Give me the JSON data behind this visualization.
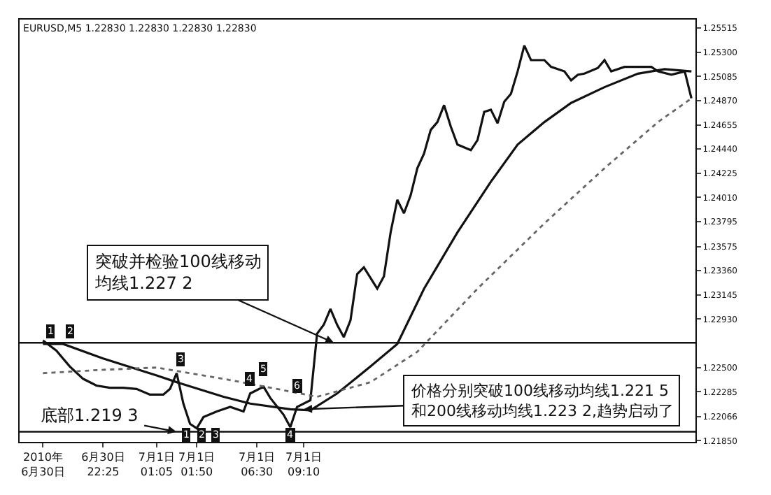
{
  "chart_data": {
    "type": "line",
    "title": "EURUSD,M5 1.22830 1.22830 1.22830 1.22830",
    "ylim": [
      1.2184,
      1.2559
    ],
    "categories": [
      null,
      "2010年\n6月30日",
      null,
      null,
      null,
      null,
      null,
      null,
      null,
      null,
      "6月30日\n22:25",
      null,
      null,
      null,
      null,
      null,
      null,
      null,
      "7月1日\n01:05",
      null,
      null,
      null,
      null,
      null,
      "7月1日\n01:50",
      null,
      null,
      null,
      null,
      null,
      null,
      null,
      null,
      "7月1日\n06:30",
      null,
      null,
      null,
      null,
      null,
      null,
      "7月1日\n09:10",
      null,
      null,
      null,
      null,
      null,
      null,
      null,
      null,
      null,
      null,
      null,
      null,
      null,
      null,
      null,
      null,
      null,
      null,
      null,
      null,
      null,
      null,
      null,
      null,
      null,
      null,
      null,
      null,
      null,
      null,
      null,
      null,
      null,
      null,
      null,
      null,
      null,
      null,
      null,
      null,
      null,
      null,
      null,
      null,
      null,
      null,
      null,
      null,
      null,
      null,
      null,
      null,
      null,
      null,
      null,
      null,
      null,
      null
    ],
    "yticks": [
      {
        "value": 1.2185,
        "label": "1.21850"
      },
      {
        "value": 1.22066,
        "label": "1.22066"
      },
      {
        "value": 1.22285,
        "label": "1.22285"
      },
      {
        "value": 1.225,
        "label": "1.22500"
      },
      {
        "value": 1.2293,
        "label": "1.22930"
      },
      {
        "value": 1.23145,
        "label": "1.23145"
      },
      {
        "value": 1.2336,
        "label": "1.23360"
      },
      {
        "value": 1.23575,
        "label": "1.23575"
      },
      {
        "value": 1.23795,
        "label": "1.23795"
      },
      {
        "value": 1.2401,
        "label": "1.24010"
      },
      {
        "value": 1.24225,
        "label": "1.24225"
      },
      {
        "value": 1.2444,
        "label": "1.24440"
      },
      {
        "value": 1.24655,
        "label": "1.24655"
      },
      {
        "value": 1.2487,
        "label": "1.24870"
      },
      {
        "value": 1.25085,
        "label": "1.25085"
      },
      {
        "value": 1.253,
        "label": "1.25300"
      },
      {
        "value": 1.25515,
        "label": "1.25515"
      }
    ],
    "marker": "none",
    "series": [
      {
        "color": "#111111",
        "line_style": "solid",
        "values": [
          null,
          1.2274,
          null,
          1.2265,
          null,
          1.2251,
          null,
          1.224,
          null,
          1.2234,
          null,
          1.2232,
          null,
          1.2232,
          null,
          1.2231,
          null,
          1.2226,
          null,
          1.2226,
          1.2231,
          1.2245,
          1.2218,
          1.22,
          1.2196,
          1.2206,
          null,
          1.2211,
          null,
          1.2215,
          null,
          1.2211,
          1.2227,
          null,
          1.2233,
          1.2223,
          null,
          1.2208,
          1.2197,
          1.2215,
          null,
          1.2221,
          1.228,
          1.2288,
          1.2302,
          1.2288,
          1.2277,
          1.2292,
          1.2333,
          1.2339,
          null,
          1.232,
          1.2331,
          1.237,
          1.2399,
          1.2387,
          1.2403,
          1.2427,
          1.244,
          1.2461,
          1.2468,
          1.2483,
          1.2464,
          1.2448,
          null,
          1.2443,
          1.2452,
          1.2477,
          1.2479,
          1.2467,
          1.2486,
          1.2493,
          1.2513,
          1.2536,
          1.2523,
          null,
          1.2523,
          1.2517,
          null,
          1.2513,
          1.2505,
          1.251,
          1.2511,
          null,
          1.2516,
          1.2523,
          1.2513,
          null,
          1.2517,
          null,
          1.2517,
          null,
          1.2517,
          1.2513,
          null,
          1.251,
          null,
          1.2513,
          1.2489
        ]
      },
      {
        "color": "#111111",
        "line_style": "solid",
        "values": [
          null,
          1.2271,
          null,
          null,
          1.2271,
          null,
          null,
          null,
          null,
          null,
          1.2258,
          null,
          null,
          null,
          null,
          null,
          null,
          null,
          1.2243,
          null,
          null,
          1.2237,
          null,
          null,
          null,
          null,
          null,
          null,
          1.2224,
          null,
          null,
          null,
          1.2218,
          null,
          null,
          null,
          null,
          null,
          1.2213,
          null,
          null,
          1.2212,
          null,
          null,
          null,
          1.2227,
          null,
          null,
          null,
          null,
          1.2251,
          null,
          null,
          null,
          1.2271,
          null,
          null,
          null,
          1.232,
          null,
          null,
          null,
          null,
          1.237,
          null,
          null,
          null,
          null,
          1.2415,
          null,
          null,
          null,
          1.2448,
          null,
          null,
          null,
          1.2468,
          null,
          null,
          null,
          1.2485,
          null,
          null,
          null,
          null,
          1.2499,
          null,
          null,
          null,
          null,
          1.2511,
          null,
          null,
          null,
          1.2515,
          null,
          null,
          null,
          1.2513
        ]
      },
      {
        "color": "#666666",
        "line_style": "dotted",
        "values": [
          null,
          1.2245,
          null,
          null,
          null,
          null,
          null,
          null,
          null,
          null,
          1.2248,
          null,
          null,
          null,
          null,
          null,
          null,
          null,
          1.225,
          null,
          null,
          null,
          null,
          null,
          null,
          null,
          null,
          null,
          1.224,
          null,
          null,
          null,
          null,
          null,
          null,
          null,
          1.2231,
          null,
          null,
          null,
          null,
          null,
          1.2224,
          null,
          null,
          null,
          null,
          null,
          null,
          null,
          1.2237,
          null,
          null,
          null,
          null,
          null,
          null,
          1.2264,
          null,
          null,
          null,
          null,
          null,
          null,
          null,
          null,
          1.232,
          null,
          null,
          null,
          null,
          null,
          null,
          null,
          null,
          null,
          1.2378,
          null,
          null,
          null,
          null,
          null,
          null,
          null,
          null,
          1.2427,
          null,
          null,
          null,
          null,
          null,
          null,
          null,
          1.2468,
          null,
          null,
          null,
          null,
          1.2489
        ]
      }
    ],
    "ref_lines": [
      {
        "axis": "y",
        "value": 1.2272,
        "color": "#111111",
        "line_style": "solid"
      },
      {
        "axis": "y",
        "value": 1.2193,
        "color": "#111111",
        "line_style": "solid"
      }
    ],
    "annotations": [
      {
        "text": "突破并检验100线移动均线1.227 2",
        "y": 1.2272
      },
      {
        "text": "价格分别突破100线移动均线1.221 5和200线移动均线1.223 2,趋势启动了",
        "x": "7月1日\n09:10",
        "y": 1.2213
      },
      {
        "text": "底部1.219 3",
        "y": 1.2193
      },
      "1",
      "2",
      "3",
      "4",
      "5",
      "6",
      "1",
      "2",
      "3",
      "4"
    ]
  }
}
